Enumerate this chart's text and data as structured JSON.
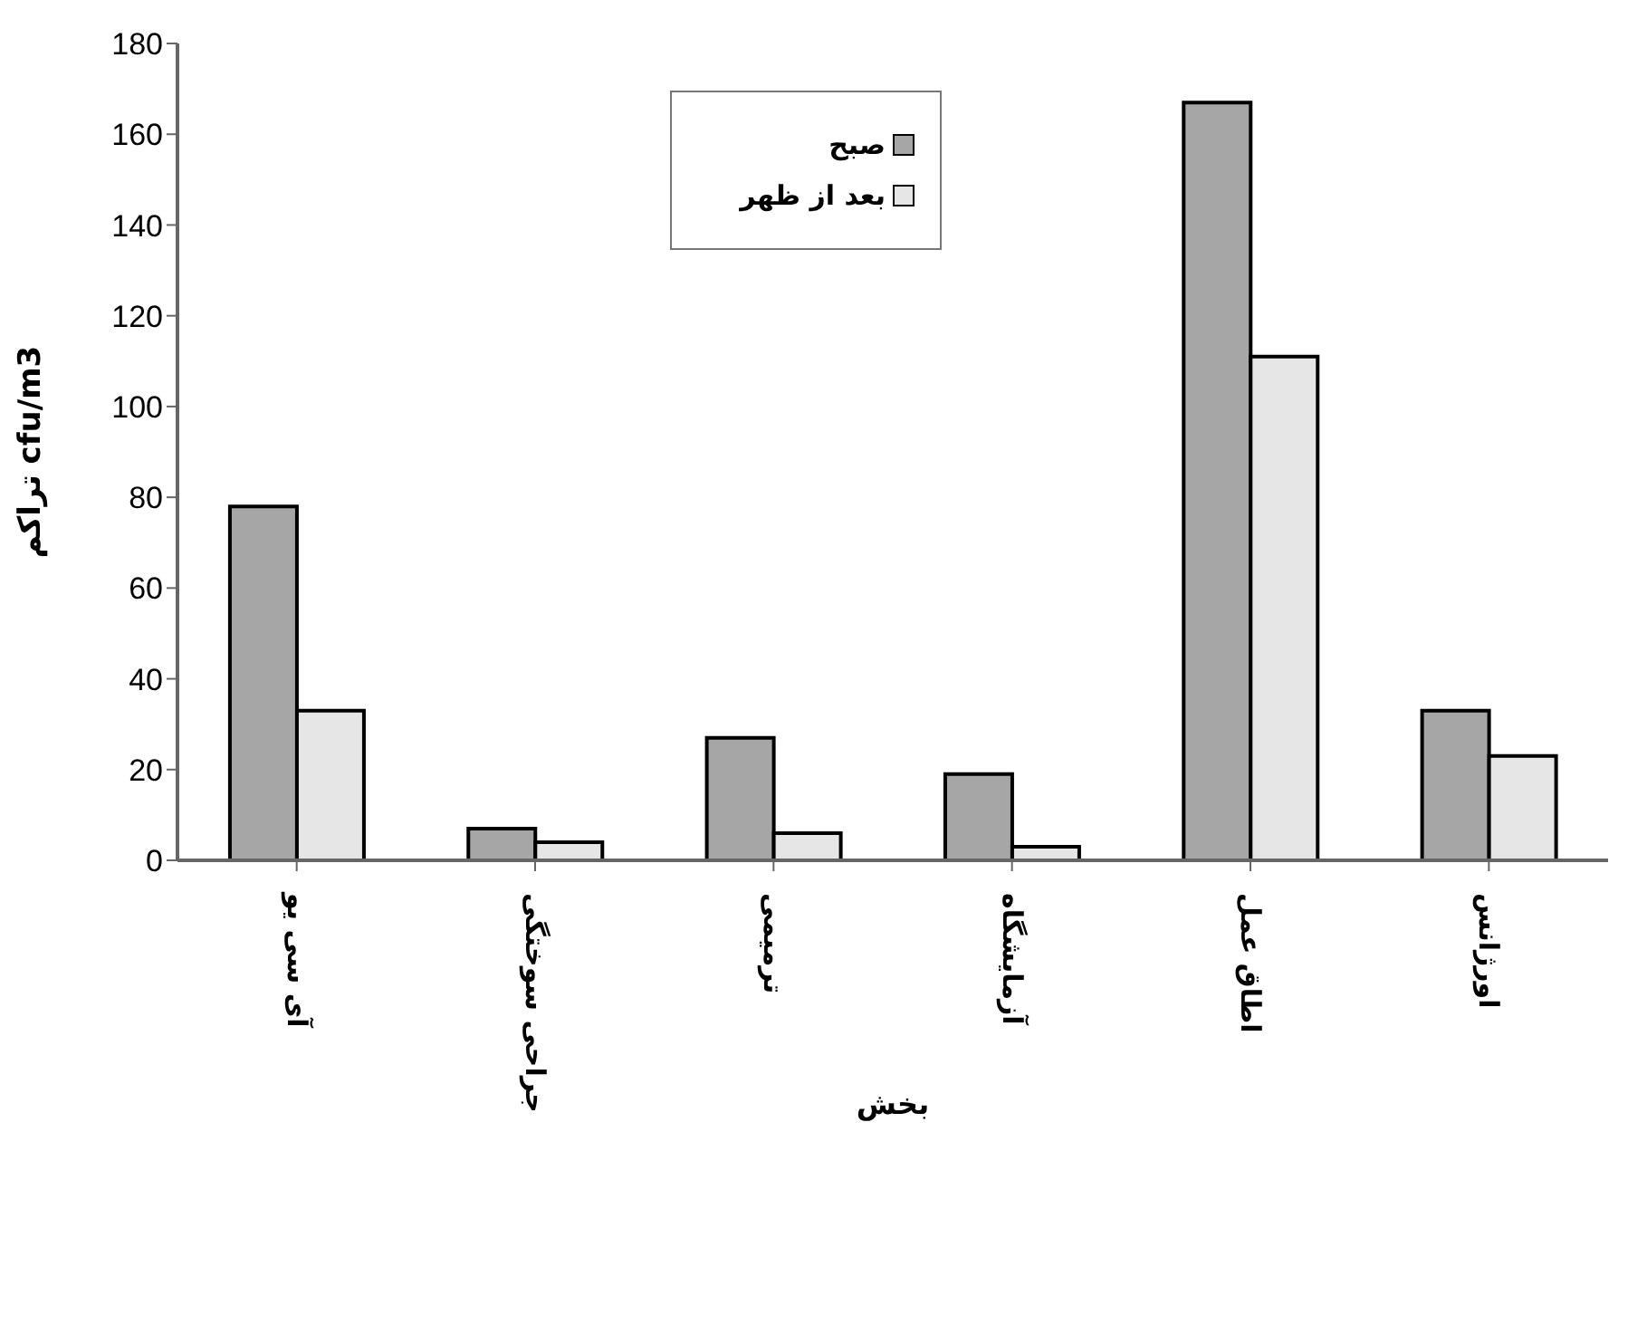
{
  "chart_data": {
    "type": "bar",
    "xlabel": "بخش",
    "ylabel": "تراکم cfu/m3",
    "categories": [
      "آی سی یو",
      "جراحی سوختگی",
      "ترمیمی",
      "آزمایشگاه",
      "اطاق عمل",
      "اورژانس"
    ],
    "series": [
      {
        "name": "صبح",
        "color": "#a6a6a6",
        "values": [
          78,
          7,
          27,
          19,
          167,
          33
        ]
      },
      {
        "name": "بعد از ظهر",
        "color": "#e6e6e6",
        "values": [
          33,
          4,
          6,
          3,
          111,
          23
        ]
      }
    ],
    "ylim": [
      0,
      180
    ],
    "yticks": [
      0,
      20,
      40,
      60,
      80,
      100,
      120,
      140,
      160,
      180
    ],
    "grid": false,
    "legend": "top"
  }
}
